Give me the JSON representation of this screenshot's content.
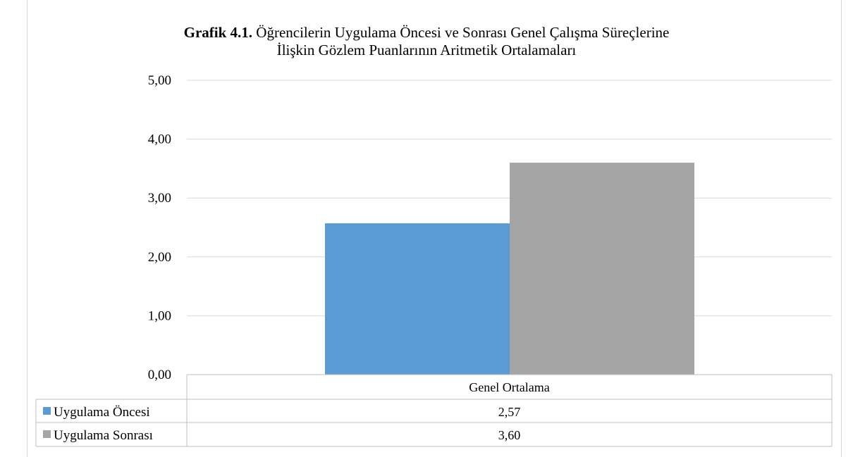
{
  "chart_data": {
    "type": "bar",
    "title_bold": "Grafik 4.1.",
    "title_line1": "Öğrencilerin Uygulama Öncesi ve Sonrası Genel Çalışma Süreçlerine",
    "title_line2": "İlişkin  Gözlem Puanlarının Aritmetik Ortalamaları",
    "categories": [
      "Genel Ortalama"
    ],
    "series": [
      {
        "name": "Uygulama Öncesi",
        "values": [
          2.57
        ],
        "value_label": "2,57",
        "color": "#5b9bd5"
      },
      {
        "name": "Uygulama Sonrası",
        "values": [
          3.6
        ],
        "value_label": "3,60",
        "color": "#a5a5a5"
      }
    ],
    "ylim": [
      0,
      5
    ],
    "yticks": [
      "0,00",
      "1,00",
      "2,00",
      "3,00",
      "4,00",
      "5,00"
    ],
    "grid": true,
    "data_table": true
  }
}
